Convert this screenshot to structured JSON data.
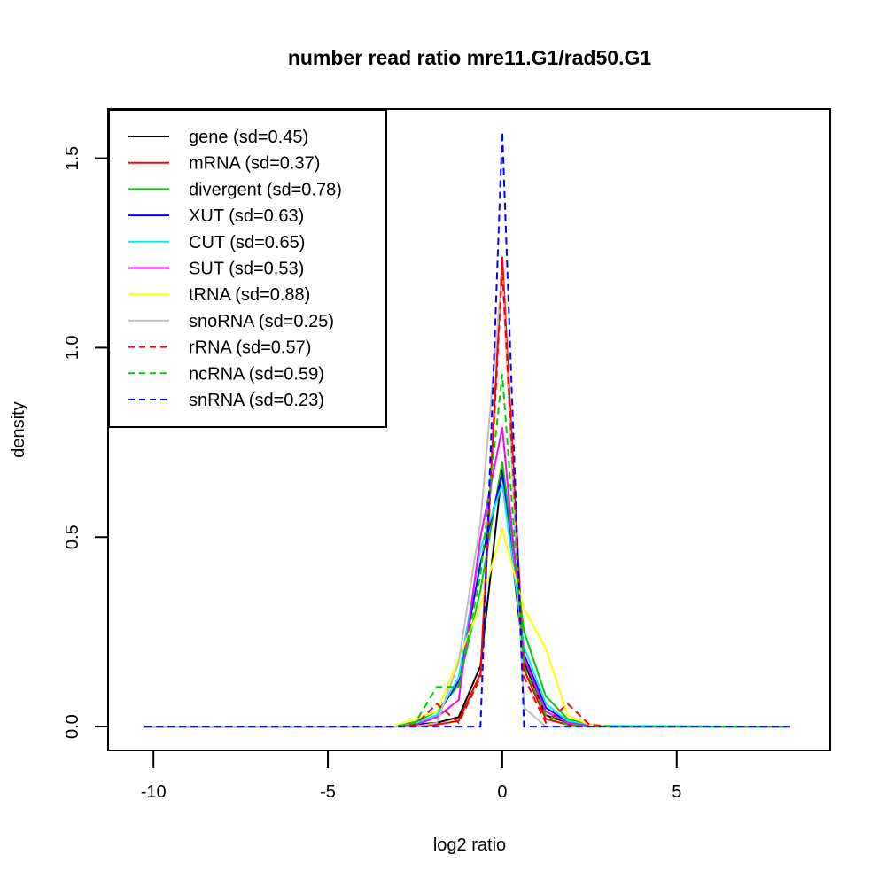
{
  "chart_data": {
    "type": "line",
    "title": "number read ratio mre11.G1/rad50.G1",
    "xlabel": "log2 ratio",
    "ylabel": "density",
    "xlim": [
      -11.3,
      9.4
    ],
    "ylim": [
      -0.063,
      1.63
    ],
    "xticks": [
      -10,
      -5,
      0,
      5
    ],
    "xtick_labels": [
      "-10",
      "-5",
      "0",
      "5"
    ],
    "yticks": [
      0.0,
      0.5,
      1.0,
      1.5
    ],
    "ytick_labels": [
      "0.0",
      "0.5",
      "1.0",
      "1.5"
    ],
    "grid": false,
    "legend_position": "top-left",
    "x": [
      -10.25,
      -3.125,
      -2.5,
      -1.875,
      -1.25,
      -0.625,
      0,
      0.625,
      1.25,
      1.875,
      2.5,
      3.125,
      3.75,
      8.25
    ],
    "series": [
      {
        "name": "gene",
        "label": "gene (sd=0.45)",
        "color": "#000000",
        "dash": "solid",
        "values": [
          0,
          0,
          0.005,
          0.01,
          0.025,
          0.16,
          0.68,
          0.17,
          0.03,
          0.01,
          0.002,
          0,
          0,
          0
        ]
      },
      {
        "name": "mRNA",
        "label": "mRNA (sd=0.37)",
        "color": "#ff0000",
        "dash": "solid",
        "values": [
          0,
          0,
          0.002,
          0.005,
          0.015,
          0.14,
          1.24,
          0.15,
          0.02,
          0.005,
          0.001,
          0,
          0,
          0
        ]
      },
      {
        "name": "divergent",
        "label": "divergent (sd=0.78)",
        "color": "#00cd00",
        "dash": "solid",
        "values": [
          0,
          0,
          0.012,
          0.04,
          0.11,
          0.36,
          0.7,
          0.25,
          0.08,
          0.02,
          0.005,
          0,
          0,
          0
        ]
      },
      {
        "name": "XUT",
        "label": "XUT (sd=0.63)",
        "color": "#0000ff",
        "dash": "solid",
        "values": [
          0,
          0,
          0.008,
          0.03,
          0.12,
          0.43,
          0.67,
          0.19,
          0.05,
          0.012,
          0.003,
          0,
          0,
          0
        ]
      },
      {
        "name": "CUT",
        "label": "CUT (sd=0.65)",
        "color": "#00eeee",
        "dash": "solid",
        "values": [
          0,
          0,
          0.008,
          0.03,
          0.13,
          0.47,
          0.64,
          0.21,
          0.06,
          0.015,
          0.004,
          0.002,
          0.002,
          0
        ]
      },
      {
        "name": "SUT",
        "label": "SUT (sd=0.53)",
        "color": "#ff00ff",
        "dash": "solid",
        "values": [
          0,
          0,
          0.004,
          0.025,
          0.07,
          0.5,
          0.79,
          0.18,
          0.04,
          0.01,
          0.002,
          0,
          0,
          0
        ]
      },
      {
        "name": "tRNA",
        "label": "tRNA (sd=0.88)",
        "color": "#ffff00",
        "dash": "solid",
        "values": [
          0,
          0,
          0.02,
          0.04,
          0.18,
          0.32,
          0.52,
          0.31,
          0.205,
          0.03,
          0.005,
          0,
          0,
          0
        ]
      },
      {
        "name": "snoRNA",
        "label": "snoRNA (sd=0.25)",
        "color": "#bebebe",
        "dash": "solid",
        "values": [
          0,
          0,
          0,
          0.01,
          0.17,
          0.54,
          1.2,
          0.05,
          0,
          0,
          0,
          0,
          0,
          0
        ]
      },
      {
        "name": "rRNA",
        "label": "rRNA (sd=0.57)",
        "color": "#ff0000",
        "dash": "dashed",
        "values": [
          0,
          0,
          0.005,
          0.06,
          0.01,
          0.13,
          1.21,
          0.13,
          0.01,
          0.06,
          0.005,
          0,
          0,
          0
        ]
      },
      {
        "name": "ncRNA",
        "label": "ncRNA (sd=0.59)",
        "color": "#00cd00",
        "dash": "dashed",
        "values": [
          0,
          0,
          0.01,
          0.105,
          0.105,
          0.4,
          0.93,
          0.16,
          0.03,
          0.005,
          0,
          0,
          0,
          0
        ]
      },
      {
        "name": "snRNA",
        "label": "snRNA (sd=0.23)",
        "color": "#0000ff",
        "dash": "dashed",
        "values": [
          0,
          0,
          0,
          0,
          0,
          0,
          1.57,
          0,
          0,
          0,
          0,
          0,
          0,
          0
        ]
      }
    ]
  }
}
